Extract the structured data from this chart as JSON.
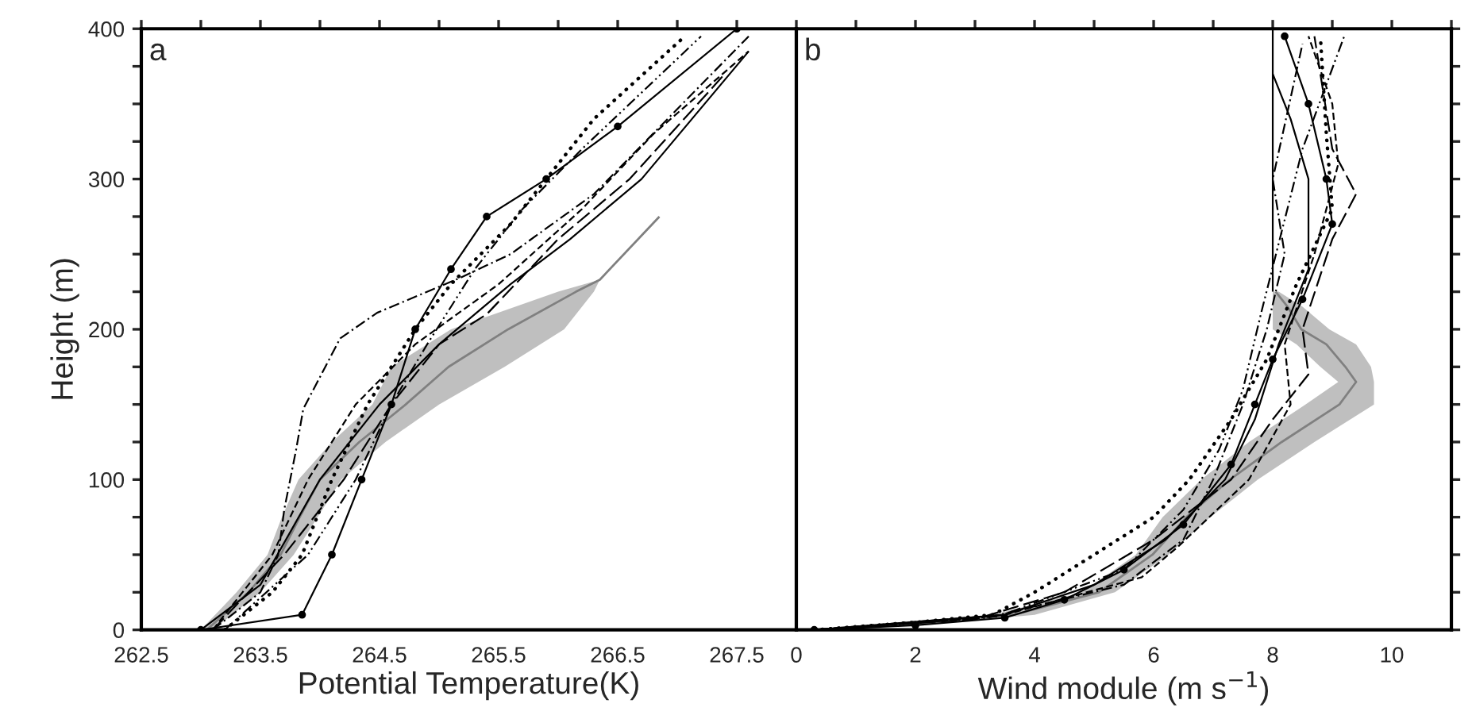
{
  "chart_data": [
    {
      "type": "line",
      "orientation": "horizontal",
      "xlabel": "Potential Temperature(K)",
      "ylabel": "Height (m)",
      "annotations": [
        "a"
      ],
      "xlim": [
        262.5,
        268
      ],
      "ylim": [
        0,
        400
      ],
      "grid": false,
      "legend": false,
      "xticks": [
        262.5,
        {
          "value": 263,
          "label": null
        },
        263.5,
        {
          "value": 264,
          "label": null
        },
        264.5,
        {
          "value": 265,
          "label": null
        },
        265.5,
        {
          "value": 266,
          "label": null
        },
        266.5,
        {
          "value": 267,
          "label": null
        },
        267.5
      ],
      "yticks": [
        0,
        {
          "value": 25,
          "label": null
        },
        {
          "value": 50,
          "label": null
        },
        {
          "value": 75,
          "label": null
        },
        100,
        {
          "value": 125,
          "label": null
        },
        {
          "value": 150,
          "label": null
        },
        {
          "value": 175,
          "label": null
        },
        200,
        {
          "value": 225,
          "label": null
        },
        {
          "value": 250,
          "label": null
        },
        {
          "value": 275,
          "label": null
        },
        300,
        {
          "value": 325,
          "label": null
        },
        {
          "value": 350,
          "label": null
        },
        {
          "value": 375,
          "label": null
        },
        400
      ],
      "series": [
        {
          "color": "#808080",
          "x": [
            0,
            25,
            50,
            75,
            100,
            125,
            150,
            175,
            200,
            225,
            233,
            275
          ],
          "values": [
            263.05,
            263.4,
            263.67,
            263.83,
            264.0,
            264.33,
            264.72,
            265.08,
            265.58,
            266.15,
            266.35,
            266.85
          ],
          "lower": [
            263.0,
            263.3,
            263.56,
            263.68,
            263.82,
            264.1,
            264.44,
            264.6,
            265.1,
            266.0,
            266.35,
            266.85
          ],
          "upper": [
            263.1,
            263.5,
            263.78,
            263.98,
            264.18,
            264.55,
            265.0,
            265.55,
            266.05,
            266.3,
            266.35,
            266.85
          ]
        },
        {
          "color": "#000000",
          "line_style": "solid",
          "marker": "circle",
          "x": [
            0,
            10,
            50,
            100,
            150,
            200,
            240,
            275,
            300,
            335,
            400
          ],
          "values": [
            263.0,
            263.85,
            264.1,
            264.35,
            264.6,
            264.8,
            265.1,
            265.4,
            265.9,
            266.5,
            267.5
          ]
        },
        {
          "color": "#000000",
          "line_style": "dotted",
          "x": [
            0,
            25,
            50,
            100,
            150,
            200,
            230,
            270,
            300,
            340,
            394
          ],
          "values": [
            263.2,
            263.6,
            263.85,
            264.1,
            264.4,
            264.8,
            265.1,
            265.6,
            265.9,
            266.3,
            267.05
          ]
        },
        {
          "color": "#000000",
          "line_style": "dashdot",
          "x": [
            0,
            25,
            50,
            80,
            120,
            147,
            194,
            211,
            234,
            250,
            290,
            395
          ],
          "values": [
            263.1,
            263.5,
            263.65,
            263.7,
            263.8,
            263.86,
            264.17,
            264.48,
            265.17,
            265.6,
            266.3,
            267.6
          ]
        },
        {
          "color": "#000000",
          "line_style": "solid",
          "x": [
            0,
            30,
            100,
            150,
            190,
            230,
            260,
            300,
            385
          ],
          "values": [
            263.0,
            263.5,
            264.0,
            264.5,
            265.0,
            265.6,
            266.1,
            266.7,
            267.6
          ]
        },
        {
          "color": "#000000",
          "line_style": "dashed",
          "x": [
            0,
            50,
            100,
            150,
            190,
            230,
            280,
            330,
            385
          ],
          "values": [
            263.1,
            263.6,
            263.9,
            264.3,
            264.8,
            265.5,
            266.2,
            266.8,
            267.6
          ]
        },
        {
          "color": "#000000",
          "line_style": "dashdotdot",
          "x": [
            0,
            50,
            100,
            150,
            190,
            240,
            280,
            320,
            395
          ],
          "values": [
            263.2,
            263.9,
            264.3,
            264.6,
            264.9,
            265.3,
            265.7,
            266.2,
            267.2
          ]
        },
        {
          "color": "#000000",
          "line_style": "longdash",
          "x": [
            0,
            50,
            100,
            150,
            190,
            210,
            260,
            300,
            370
          ],
          "values": [
            263.1,
            263.7,
            264.2,
            264.6,
            265.0,
            265.4,
            266.0,
            266.6,
            267.4
          ]
        }
      ]
    },
    {
      "type": "line",
      "orientation": "horizontal",
      "xlabel": "Wind module (m s$^{−1}$)",
      "annotations": [
        "b"
      ],
      "xlim": [
        0,
        11
      ],
      "ylim": [
        0,
        400
      ],
      "grid": false,
      "legend": false,
      "tick_labels": "x",
      "xticks": [
        0,
        {
          "value": 1,
          "label": null
        },
        2,
        {
          "value": 3,
          "label": null
        },
        4,
        {
          "value": 5,
          "label": null
        },
        6,
        {
          "value": 7,
          "label": null
        },
        8,
        {
          "value": 9,
          "label": null
        },
        10,
        {
          "value": 11,
          "label": null
        }
      ],
      "yticks": [
        0,
        25,
        50,
        75,
        100,
        125,
        150,
        175,
        200,
        225,
        250,
        275,
        300,
        325,
        350,
        375,
        400
      ],
      "series": [
        {
          "color": "#808080",
          "x": [
            0,
            5,
            10,
            25,
            50,
            75,
            100,
            125,
            150,
            165,
            175,
            190,
            200,
            215,
            225
          ],
          "values": [
            0.35,
            2.3,
            3.65,
            5.08,
            5.98,
            6.55,
            7.28,
            8.15,
            9.12,
            9.4,
            9.22,
            8.9,
            8.48,
            8.25,
            8.05
          ],
          "lower": [
            0.3,
            2.0,
            3.3,
            4.8,
            5.7,
            6.15,
            6.8,
            7.6,
            8.55,
            9.1,
            8.8,
            8.4,
            8.0,
            8.0,
            8.0
          ],
          "upper": [
            0.4,
            2.6,
            4.0,
            5.35,
            6.25,
            6.95,
            7.75,
            8.7,
            9.7,
            9.7,
            9.65,
            9.4,
            8.95,
            8.5,
            8.1
          ]
        },
        {
          "color": "#000000",
          "line_style": "solid",
          "x": [
            225,
            400
          ],
          "values": [
            8.0,
            8.0
          ]
        },
        {
          "color": "#000000",
          "line_style": "solid",
          "marker": "circle",
          "x": [
            0,
            3,
            8,
            20,
            40,
            70,
            110,
            150,
            180,
            220,
            270,
            300,
            350,
            395
          ],
          "values": [
            0.3,
            2.0,
            3.5,
            4.5,
            5.5,
            6.5,
            7.3,
            7.7,
            8.0,
            8.5,
            9.0,
            8.9,
            8.6,
            8.2
          ]
        },
        {
          "color": "#000000",
          "line_style": "dotted",
          "x": [
            0,
            5,
            10,
            25,
            50,
            75,
            100,
            140,
            180,
            230,
            280,
            330,
            395
          ],
          "values": [
            0.3,
            2.0,
            3.3,
            4.0,
            5.0,
            6.0,
            6.6,
            7.3,
            7.9,
            8.4,
            9.0,
            8.9,
            8.8
          ]
        },
        {
          "color": "#000000",
          "line_style": "longdash",
          "x": [
            0,
            7,
            25,
            60,
            100,
            140,
            170,
            200,
            260,
            290,
            320,
            395
          ],
          "values": [
            0.3,
            3.0,
            4.5,
            6.0,
            7.3,
            8.0,
            8.6,
            8.5,
            9.0,
            9.4,
            9.0,
            8.7
          ]
        },
        {
          "color": "#000000",
          "line_style": "dashdot",
          "x": [
            0,
            8,
            30,
            60,
            100,
            150,
            200,
            250,
            300,
            390
          ],
          "values": [
            0.3,
            3.2,
            5.5,
            6.5,
            7.0,
            7.5,
            7.9,
            8.2,
            8.0,
            8.5
          ]
        },
        {
          "color": "#000000",
          "line_style": "solid",
          "x": [
            0,
            10,
            30,
            60,
            100,
            140,
            190,
            240,
            300,
            340,
            370
          ],
          "values": [
            0.3,
            3.5,
            5.0,
            6.2,
            7.2,
            7.7,
            8.1,
            8.6,
            8.6,
            8.3,
            8.0
          ]
        },
        {
          "color": "#000000",
          "line_style": "dashdotdot",
          "x": [
            0,
            9,
            40,
            80,
            120,
            160,
            210,
            320,
            395
          ],
          "values": [
            0.3,
            3.4,
            5.5,
            6.5,
            7.1,
            7.5,
            7.8,
            8.5,
            9.2
          ]
        },
        {
          "color": "#000000",
          "line_style": "dashed",
          "x": [
            0,
            10,
            35,
            55,
            100,
            150,
            190,
            250,
            310,
            350,
            395
          ],
          "values": [
            0.3,
            3.5,
            5.8,
            6.4,
            7.6,
            8.3,
            8.2,
            8.7,
            9.1,
            9.0,
            8.6
          ]
        }
      ]
    }
  ]
}
